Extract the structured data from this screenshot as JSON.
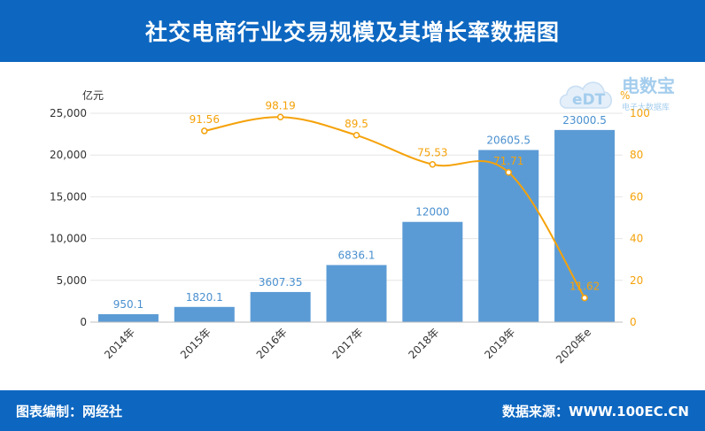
{
  "header": {
    "title": "社交电商行业交易规模及其增长率数据图"
  },
  "footer": {
    "left": "图表编制：网经社",
    "right": "数据来源：WWW.100EC.CN"
  },
  "logo": {
    "mark": "eDT",
    "name": "电数宝",
    "sub": "电子大数据库"
  },
  "chart_data": {
    "type": "bar",
    "categories": [
      "2014年",
      "2015年",
      "2016年",
      "2017年",
      "2018年",
      "2019年",
      "2020年e"
    ],
    "series": [
      {
        "type": "bar",
        "values": [
          950.1,
          1820.1,
          3607.35,
          6836.1,
          12000,
          20605.5,
          23000.5
        ],
        "labels": [
          "950.1",
          "1820.1",
          "3607.35",
          "6836.1",
          "12000",
          "20605.5",
          "23000.5"
        ],
        "color": "#5b9bd5",
        "axis": "left"
      },
      {
        "type": "line",
        "values": [
          null,
          91.56,
          98.19,
          89.5,
          75.53,
          71.71,
          11.62
        ],
        "labels": [
          "",
          "91.56",
          "98.19",
          "89.5",
          "75.53",
          "71.71",
          "11.62"
        ],
        "color": "#f5a20a",
        "axis": "right"
      }
    ],
    "ylabel_left": "亿元",
    "ylabel_right": "%",
    "ylim_left": [
      0,
      25000
    ],
    "ylim_right": [
      0,
      100
    ],
    "yticks_left": [
      "0",
      "5,000",
      "10,000",
      "15,000",
      "20,000",
      "25,000"
    ],
    "yticks_right": [
      "0",
      "20",
      "40",
      "60",
      "80",
      "100"
    ],
    "grid": true
  }
}
